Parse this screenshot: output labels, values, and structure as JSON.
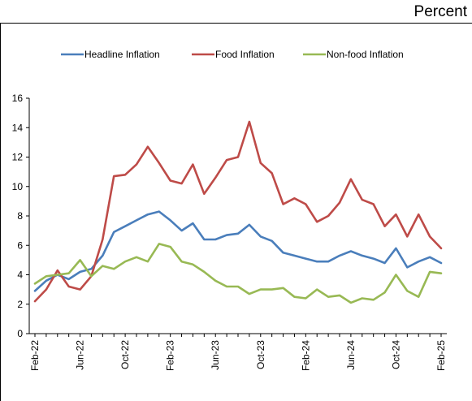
{
  "chart_data": {
    "type": "line",
    "unit_label": "Percent",
    "title": "",
    "xlabel": "",
    "ylabel": "",
    "ylim": [
      0,
      16
    ],
    "yticks": [
      0,
      2,
      4,
      6,
      8,
      10,
      12,
      14,
      16
    ],
    "legend_position": "top",
    "grid": false,
    "x": [
      "Feb-22",
      "Mar-22",
      "Apr-22",
      "May-22",
      "Jun-22",
      "Jul-22",
      "Aug-22",
      "Sep-22",
      "Oct-22",
      "Nov-22",
      "Dec-22",
      "Jan-23",
      "Feb-23",
      "Mar-23",
      "Apr-23",
      "May-23",
      "Jun-23",
      "Jul-23",
      "Aug-23",
      "Sep-23",
      "Oct-23",
      "Nov-23",
      "Dec-23",
      "Jan-24",
      "Feb-24",
      "Mar-24",
      "Apr-24",
      "May-24",
      "Jun-24",
      "Jul-24",
      "Aug-24",
      "Sep-24",
      "Oct-24",
      "Nov-24",
      "Dec-24",
      "Jan-25",
      "Feb-25"
    ],
    "x_tick_labels": [
      "Feb-22",
      "Jun-22",
      "Oct-22",
      "Feb-23",
      "Jun-23",
      "Oct-23",
      "Feb-24",
      "Jun-24",
      "Oct-24",
      "Feb-25"
    ],
    "series": [
      {
        "name": "Headline Inflation",
        "color": "#4a7ebb",
        "values": [
          2.9,
          3.6,
          4.0,
          3.7,
          4.2,
          4.4,
          5.3,
          6.9,
          7.3,
          7.7,
          8.1,
          8.3,
          7.7,
          7.0,
          7.5,
          6.4,
          6.4,
          6.7,
          6.8,
          7.4,
          6.6,
          6.3,
          5.5,
          5.3,
          5.1,
          4.9,
          4.9,
          5.3,
          5.6,
          5.3,
          5.1,
          4.8,
          5.8,
          4.5,
          4.9,
          5.2,
          4.8
        ]
      },
      {
        "name": "Food Inflation",
        "color": "#be4b48",
        "values": [
          2.2,
          3.0,
          4.3,
          3.2,
          3.0,
          3.9,
          6.4,
          10.7,
          10.8,
          11.5,
          12.7,
          11.6,
          10.4,
          10.2,
          11.5,
          9.5,
          10.6,
          11.8,
          12.0,
          14.4,
          11.6,
          10.9,
          8.8,
          9.2,
          8.8,
          7.6,
          8.0,
          8.9,
          10.5,
          9.1,
          8.8,
          7.3,
          8.1,
          6.6,
          8.1,
          6.6,
          5.8
        ]
      },
      {
        "name": "Non-food Inflation",
        "color": "#98b954",
        "values": [
          3.4,
          3.9,
          4.0,
          4.1,
          5.0,
          3.9,
          4.6,
          4.4,
          4.9,
          5.2,
          4.9,
          6.1,
          5.9,
          4.9,
          4.7,
          4.2,
          3.6,
          3.2,
          3.2,
          2.7,
          3.0,
          3.0,
          3.1,
          2.5,
          2.4,
          3.0,
          2.5,
          2.6,
          2.1,
          2.4,
          2.3,
          2.8,
          4.0,
          2.9,
          2.5,
          4.2,
          4.1
        ]
      }
    ]
  }
}
